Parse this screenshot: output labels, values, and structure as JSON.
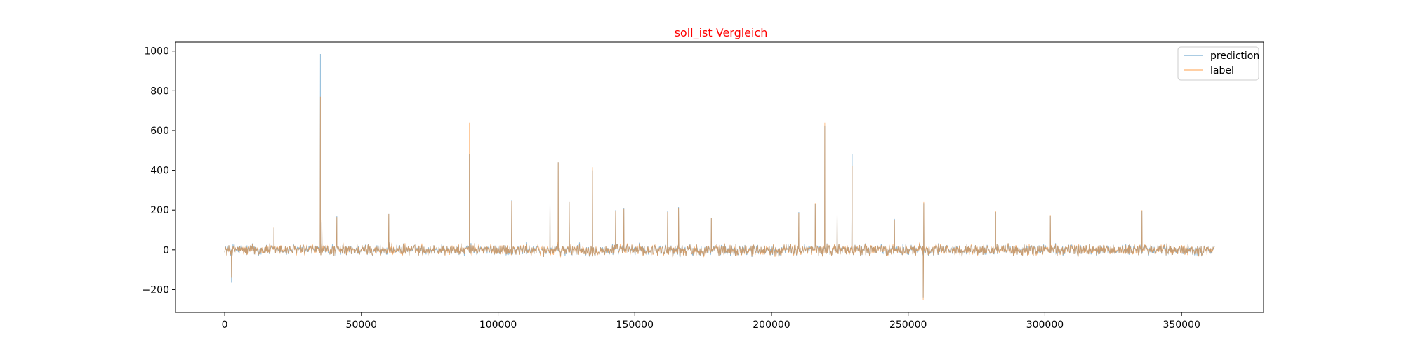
{
  "colors": {
    "prediction": "#1f77b4",
    "label": "#ff7f0e",
    "title": "#ff0000"
  },
  "chart_data": {
    "type": "line",
    "title": "soll_ist Vergleich",
    "xlabel": "",
    "ylabel": "",
    "xlim": [
      -18000,
      380000
    ],
    "ylim": [
      -315,
      1045
    ],
    "x_ticks": [
      0,
      50000,
      100000,
      150000,
      200000,
      250000,
      300000,
      350000
    ],
    "y_ticks": [
      -200,
      0,
      200,
      400,
      600,
      800,
      1000
    ],
    "x_tick_labels": [
      "0",
      "50000",
      "100000",
      "150000",
      "200000",
      "250000",
      "300000",
      "350000"
    ],
    "y_tick_labels": [
      "−200",
      "0",
      "200",
      "400",
      "600",
      "800",
      "1000"
    ],
    "grid": false,
    "legend_position": "top-right",
    "series": [
      {
        "name": "prediction",
        "line_opacity": 0.5,
        "peaks": [
          [
            2500,
            -165
          ],
          [
            18000,
            110
          ],
          [
            35000,
            985
          ],
          [
            35500,
            140
          ],
          [
            41000,
            170
          ],
          [
            60000,
            180
          ],
          [
            89500,
            480
          ],
          [
            105000,
            250
          ],
          [
            119000,
            230
          ],
          [
            122000,
            440
          ],
          [
            126000,
            240
          ],
          [
            134500,
            400
          ],
          [
            143000,
            200
          ],
          [
            146000,
            210
          ],
          [
            162000,
            195
          ],
          [
            166000,
            215
          ],
          [
            178000,
            160
          ],
          [
            210000,
            190
          ],
          [
            216000,
            230
          ],
          [
            219500,
            625
          ],
          [
            224000,
            175
          ],
          [
            229500,
            480
          ],
          [
            245000,
            155
          ],
          [
            255500,
            -240
          ],
          [
            255700,
            235
          ],
          [
            282000,
            190
          ],
          [
            302000,
            170
          ],
          [
            335500,
            195
          ]
        ]
      },
      {
        "name": "label",
        "line_opacity": 0.5,
        "peaks": [
          [
            2500,
            -140
          ],
          [
            18000,
            115
          ],
          [
            35000,
            770
          ],
          [
            35500,
            150
          ],
          [
            41000,
            165
          ],
          [
            60000,
            180
          ],
          [
            89500,
            640
          ],
          [
            105000,
            245
          ],
          [
            119000,
            225
          ],
          [
            122000,
            440
          ],
          [
            126000,
            240
          ],
          [
            134500,
            415
          ],
          [
            143000,
            195
          ],
          [
            146000,
            205
          ],
          [
            162000,
            190
          ],
          [
            166000,
            210
          ],
          [
            178000,
            160
          ],
          [
            210000,
            185
          ],
          [
            216000,
            235
          ],
          [
            219500,
            640
          ],
          [
            224000,
            175
          ],
          [
            229500,
            420
          ],
          [
            245000,
            150
          ],
          [
            255500,
            -255
          ],
          [
            255700,
            240
          ],
          [
            282000,
            195
          ],
          [
            302000,
            175
          ],
          [
            335500,
            200
          ]
        ]
      }
    ],
    "noise": {
      "x_start": 0,
      "x_end": 362000,
      "points": 2400,
      "amplitude": 35
    }
  }
}
